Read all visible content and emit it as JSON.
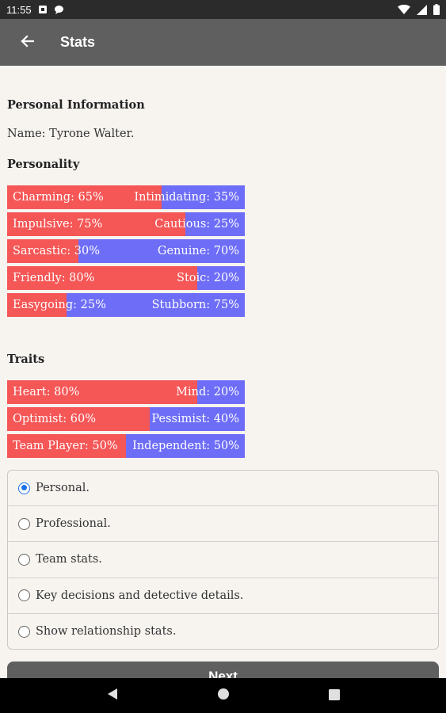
{
  "status_bar": {
    "time": "11:55",
    "icons": [
      "notification-icon",
      "chat-icon",
      "wifi-icon",
      "signal-icon",
      "battery-icon"
    ]
  },
  "app_bar": {
    "title": "Stats",
    "back_icon": "arrow-left-icon"
  },
  "personal_info": {
    "heading": "Personal Information",
    "name_line": "Name: Tyrone Walter."
  },
  "personality": {
    "heading": "Personality",
    "bars": [
      {
        "left": "Charming: 65%",
        "right": "Intimidating: 35%",
        "left_pct": 65
      },
      {
        "left": "Impulsive: 75%",
        "right": "Cautious: 25%",
        "left_pct": 75
      },
      {
        "left": "Sarcastic: 30%",
        "right": "Genuine: 70%",
        "left_pct": 30
      },
      {
        "left": "Friendly: 80%",
        "right": "Stoic: 20%",
        "left_pct": 80
      },
      {
        "left": "Easygoing: 25%",
        "right": "Stubborn: 75%",
        "left_pct": 25
      }
    ]
  },
  "traits": {
    "heading": "Traits",
    "bars": [
      {
        "left": "Heart: 80%",
        "right": "Mind: 20%",
        "left_pct": 80
      },
      {
        "left": "Optimist: 60%",
        "right": "Pessimist: 40%",
        "left_pct": 60
      },
      {
        "left": "Team Player: 50%",
        "right": "Independent: 50%",
        "left_pct": 50
      }
    ]
  },
  "options": {
    "selected_index": 0,
    "items": [
      "Personal.",
      "Professional.",
      "Team stats.",
      "Key decisions and detective details.",
      "Show relationship stats."
    ]
  },
  "next_button": {
    "label": "Next"
  },
  "colors": {
    "left_bar": "#f55656",
    "right_bar": "#6d6df7",
    "app_bar": "#5f5f5f",
    "radio_accent": "#1a73e8"
  }
}
